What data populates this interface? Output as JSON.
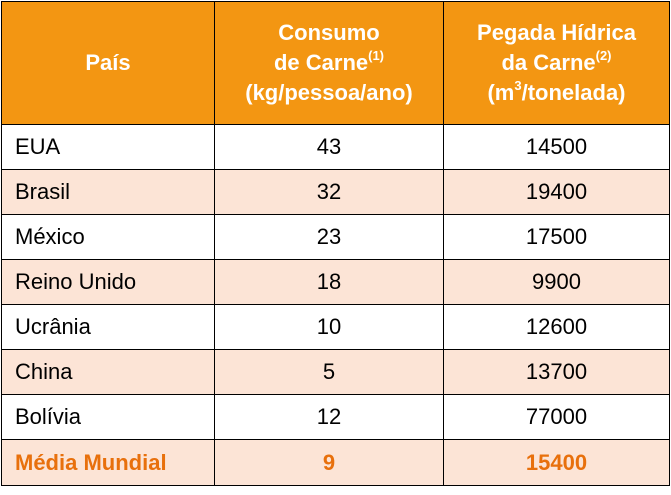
{
  "colors": {
    "header_bg": "#F39612",
    "header_text": "#FFFFFF",
    "stripe_bg": "#FCE4D6",
    "total_text": "#E8700C"
  },
  "header": {
    "col1": "País",
    "col2_line1": "Consumo",
    "col2_line2": "de Carne",
    "col2_sup": "(1)",
    "col2_line3": "(kg/pessoa/ano)",
    "col3_line1": "Pegada Hídrica",
    "col3_line2": "da Carne",
    "col3_sup": "(2)",
    "col3_line3_a": "(m",
    "col3_line3_sup": "3",
    "col3_line3_b": "/tonelada)"
  },
  "rows": [
    {
      "country": "EUA",
      "consumo": "43",
      "pegada": "14500"
    },
    {
      "country": "Brasil",
      "consumo": "32",
      "pegada": "19400"
    },
    {
      "country": "México",
      "consumo": "23",
      "pegada": "17500"
    },
    {
      "country": "Reino Unido",
      "consumo": "18",
      "pegada": "9900"
    },
    {
      "country": "Ucrânia",
      "consumo": "10",
      "pegada": "12600"
    },
    {
      "country": "China",
      "consumo": "5",
      "pegada": "13700"
    },
    {
      "country": "Bolívia",
      "consumo": "12",
      "pegada": "77000"
    }
  ],
  "total": {
    "country": "Média Mundial",
    "consumo": "9",
    "pegada": "15400"
  }
}
